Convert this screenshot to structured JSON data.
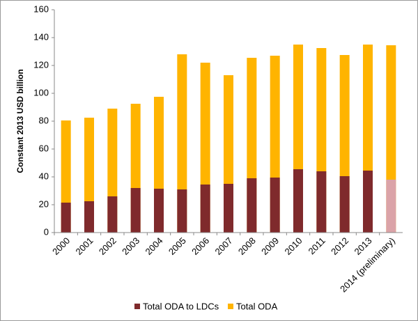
{
  "chart_data": {
    "type": "bar",
    "y_label": "Constant 2013 USD billion",
    "categories": [
      "2000",
      "2001",
      "2002",
      "2003",
      "2004",
      "2005",
      "2006",
      "2007",
      "2008",
      "2009",
      "2010",
      "2011",
      "2012",
      "2013",
      "2014 (preliminary)"
    ],
    "series": [
      {
        "name": "Total ODA to LDCs",
        "color": "#7f2a2c",
        "colors": [
          "#7f2a2c",
          "#7f2a2c",
          "#7f2a2c",
          "#7f2a2c",
          "#7f2a2c",
          "#7f2a2c",
          "#7f2a2c",
          "#7f2a2c",
          "#7f2a2c",
          "#7f2a2c",
          "#7f2a2c",
          "#7f2a2c",
          "#7f2a2c",
          "#7f2a2c",
          "#dba3a8"
        ],
        "values": [
          21.5,
          22.5,
          26,
          32,
          31.5,
          31,
          34.5,
          35,
          39,
          39.5,
          45.5,
          44,
          40.5,
          44.5,
          38
        ]
      },
      {
        "name": "Total ODA",
        "color": "#ffb400",
        "values": [
          80.5,
          82.5,
          89,
          92.5,
          97.5,
          128,
          122,
          113,
          125.5,
          127,
          135,
          132.5,
          127.5,
          135,
          134.5
        ]
      }
    ],
    "ylim": [
      0,
      160
    ],
    "yticks": [
      0,
      20,
      40,
      60,
      80,
      100,
      120,
      140,
      160
    ],
    "grid": false
  }
}
